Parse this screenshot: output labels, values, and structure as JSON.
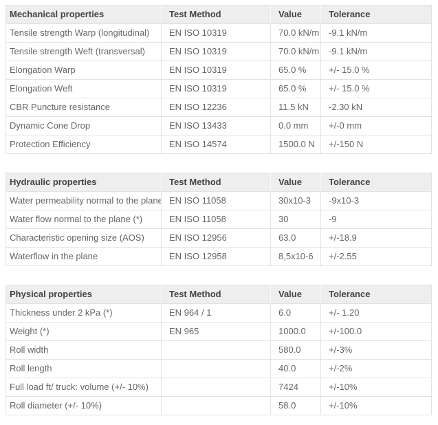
{
  "colors": {
    "header_bg": "#eeeeee",
    "header_text": "#444444",
    "body_text": "#666666",
    "grid_border": "#e2e2e2",
    "page_bg": "#ffffff"
  },
  "tables": [
    {
      "title": "Mechanical properties",
      "columns": [
        "Test Method",
        "Value",
        "Tolerance"
      ],
      "rows": [
        [
          "Tensile strength Warp (longitudinal)",
          "EN ISO 10319",
          "70.0 kN/m",
          "-9.1 kN/m"
        ],
        [
          "Tensile strength Weft (transversal)",
          "EN ISO 10319",
          "70.0 kN/m",
          "-9.1 kN/m"
        ],
        [
          "Elongation Warp",
          "EN ISO 10319",
          "65.0 %",
          "+/- 15.0 %"
        ],
        [
          "Elongation Weft",
          "EN ISO 10319",
          "65.0 %",
          "+/- 15.0 %"
        ],
        [
          "CBR Puncture resistance",
          "EN ISO 12236",
          "11.5 kN",
          "-2.30 kN"
        ],
        [
          "Dynamic Cone Drop",
          "EN ISO 13433",
          "0.0 mm",
          "+/-0 mm"
        ],
        [
          "Protection Efficiency",
          "EN ISO 14574",
          "1500.0 N",
          "+/-150 N"
        ]
      ]
    },
    {
      "title": "Hydraulic properties",
      "columns": [
        "Test Method",
        "Value",
        "Tolerance"
      ],
      "rows": [
        [
          "Water permeability normal to the plane",
          "EN ISO 11058",
          "30x10-3",
          "-9x10-3"
        ],
        [
          "Water flow normal to the plane (*)",
          "EN ISO 11058",
          "30",
          "-9"
        ],
        [
          "Characteristic opening size (AOS)",
          "EN ISO 12956",
          "63.0",
          "+/-18.9"
        ],
        [
          "Waterflow in the plane",
          "EN ISO 12958",
          "8,5x10-6",
          "+/-2.55"
        ]
      ]
    },
    {
      "title": "Physical properties",
      "columns": [
        "Test Method",
        "Value",
        "Tolerance"
      ],
      "rows": [
        [
          "Thickness under 2 kPa (*)",
          "EN 964 / 1",
          "6.0",
          "+/- 1.20"
        ],
        [
          "Weight (*)",
          "EN 965",
          "1000.0",
          "+/-100.0"
        ],
        [
          "Roll width",
          "",
          "580.0",
          "+/-3%"
        ],
        [
          "Roll length",
          "",
          "40.0",
          "+/-2%"
        ],
        [
          "Full load ft/ truck: volume (+/- 10%)",
          "",
          "7424",
          "+/-10%"
        ],
        [
          "Roll diameter (+/- 10%)",
          "",
          "58.0",
          "+/-10%"
        ]
      ]
    }
  ]
}
